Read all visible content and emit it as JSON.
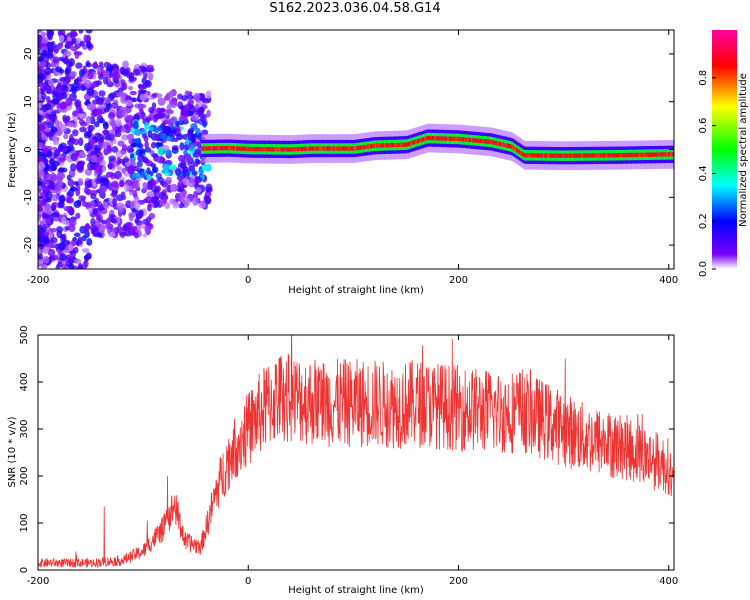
{
  "title": "S162.2023.036.04.58.G14",
  "chart_data": [
    {
      "type": "heatmap",
      "title": "S162.2023.036.04.58.G14",
      "xlabel": "Height of straight line (km)",
      "ylabel": "Frequency (Hz)",
      "xlim": [
        -200,
        405
      ],
      "ylim": [
        -25,
        25
      ],
      "xticks": [
        -200,
        0,
        200,
        400
      ],
      "yticks": [
        -20,
        -10,
        0,
        10,
        20
      ],
      "colorbar": {
        "label": "Normalized spectral amplitude",
        "range": [
          0,
          1
        ],
        "ticks": [
          "0.0",
          "0.2",
          "0.4",
          "0.6",
          "0.8"
        ],
        "colors": [
          "#ffffff",
          "#7a00ff",
          "#0000ff",
          "#00ffff",
          "#00ff00",
          "#ffff00",
          "#ff0000",
          "#ff00a0"
        ]
      },
      "ridge": {
        "x": [
          -45,
          -20,
          0,
          40,
          60,
          100,
          120,
          150,
          170,
          200,
          230,
          250,
          262,
          300,
          350,
          405
        ],
        "y": [
          0.2,
          0.3,
          0.1,
          0.0,
          0.2,
          0.2,
          0.8,
          1.0,
          2.4,
          2.2,
          1.6,
          0.6,
          -1.2,
          -1.3,
          -1.2,
          -1.0
        ]
      },
      "noise_region": [
        -200,
        -45
      ]
    },
    {
      "type": "line",
      "xlabel": "Height of straight line (km)",
      "ylabel": "SNR (10 * v/v)",
      "xlim": [
        -200,
        405
      ],
      "ylim": [
        0,
        500
      ],
      "xticks": [
        -200,
        0,
        200,
        400
      ],
      "yticks": [
        0,
        100,
        200,
        300,
        400,
        500
      ],
      "color": "#ee3333",
      "x": [
        -200,
        -150,
        -120,
        -100,
        -80,
        -70,
        -60,
        -45,
        -30,
        -20,
        -10,
        0,
        10,
        20,
        30,
        40,
        60,
        80,
        100,
        120,
        140,
        160,
        180,
        200,
        220,
        240,
        260,
        280,
        300,
        320,
        340,
        360,
        380,
        400,
        405
      ],
      "y": [
        15,
        15,
        20,
        40,
        90,
        140,
        60,
        50,
        170,
        230,
        270,
        300,
        330,
        355,
        370,
        365,
        360,
        355,
        355,
        355,
        350,
        355,
        350,
        345,
        340,
        335,
        340,
        320,
        300,
        280,
        270,
        260,
        240,
        220,
        170
      ]
    }
  ]
}
